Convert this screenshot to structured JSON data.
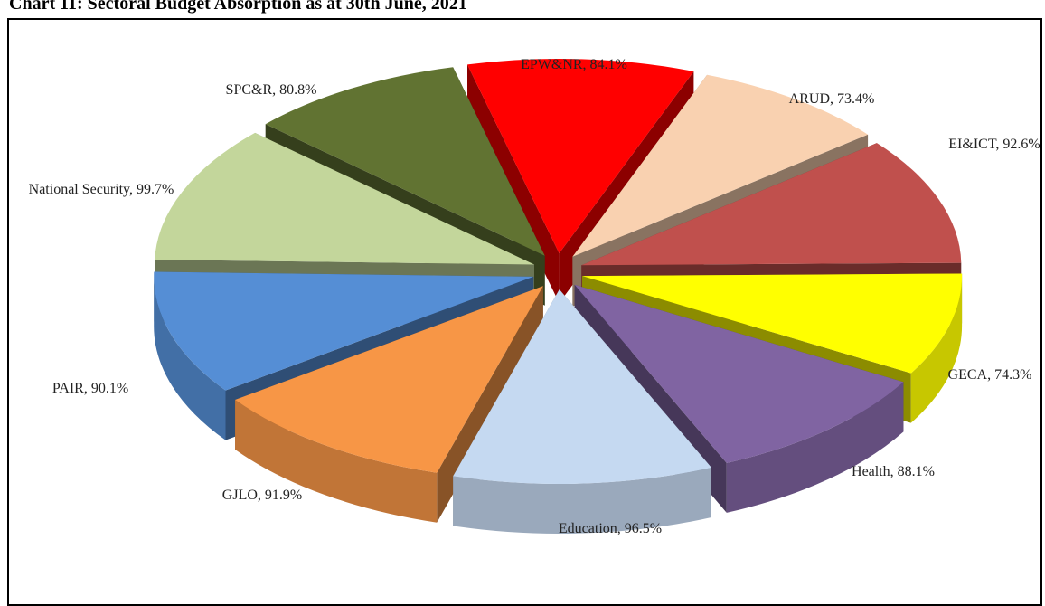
{
  "chart_data": {
    "type": "pie3d",
    "title": "Chart 11: Sectoral Budget Absorption as at 30th June, 2021",
    "labels": [
      "EPW&NR, 84.1%",
      "ARUD, 73.4%",
      "EI&ICT, 92.6%",
      "GECA, 74.3%",
      "Health, 88.1%",
      "Education, 96.5%",
      "GJLO, 91.9%",
      "PAIR, 90.1%",
      "National Security, 99.7%",
      "SPC&R, 80.8%"
    ],
    "values": [
      84.1,
      73.4,
      92.6,
      74.3,
      88.1,
      96.5,
      91.9,
      90.1,
      99.7,
      80.8
    ],
    "colors": [
      "#ff0000",
      "#f9d1b0",
      "#c0504d",
      "#ffff00",
      "#8064a2",
      "#c5d9f1",
      "#f79646",
      "#558ed5",
      "#c3d69b",
      "#617332"
    ]
  }
}
